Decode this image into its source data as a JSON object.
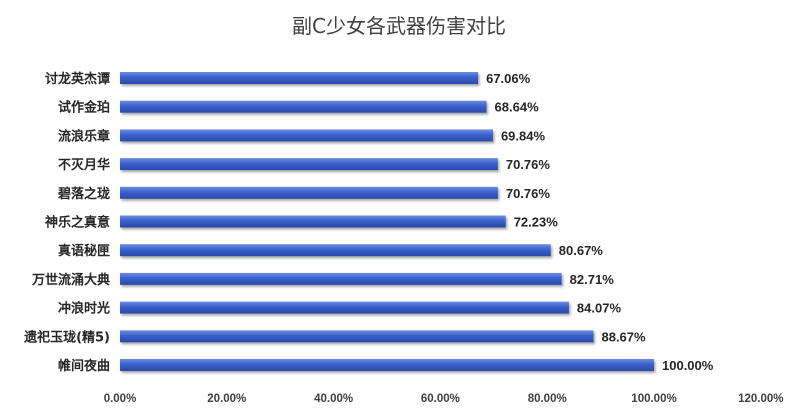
{
  "chart_data": {
    "type": "bar",
    "orientation": "horizontal",
    "title": "副C少女各武器伤害对比",
    "categories": [
      "讨龙英杰谭",
      "试作金珀",
      "流浪乐章",
      "不灭月华",
      "碧落之珑",
      "神乐之真意",
      "真语秘匣",
      "万世流涌大典",
      "冲浪时光",
      "遗祀玉珑(精5)",
      "帷间夜曲"
    ],
    "values": [
      67.06,
      68.64,
      69.84,
      70.76,
      70.76,
      72.23,
      80.67,
      82.71,
      84.07,
      88.67,
      100.0
    ],
    "value_labels": [
      "67.06%",
      "68.64%",
      "69.84%",
      "70.76%",
      "70.76%",
      "72.23%",
      "80.67%",
      "82.71%",
      "84.07%",
      "88.67%",
      "100.00%"
    ],
    "x_ticks": [
      "0.00%",
      "20.00%",
      "40.00%",
      "60.00%",
      "80.00%",
      "100.00%",
      "120.00%"
    ],
    "xlim": [
      0,
      120
    ],
    "xlabel": "",
    "ylabel": "",
    "grid": false,
    "legend": "none",
    "bar_color": "#3a5fcd",
    "bar_color_light": "#6d8ee0",
    "bar_color_dark": "#2a4aa8"
  }
}
